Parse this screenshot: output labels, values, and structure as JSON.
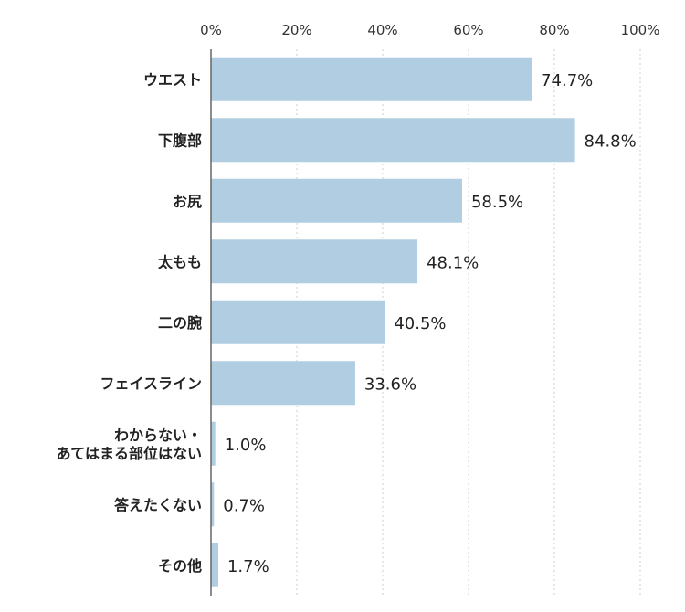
{
  "chart_data": {
    "type": "bar",
    "orientation": "horizontal",
    "categories": [
      [
        "ウエスト"
      ],
      [
        "下腹部"
      ],
      [
        "お尻"
      ],
      [
        "太もも"
      ],
      [
        "二の腕"
      ],
      [
        "フェイスライン"
      ],
      [
        "わからない・",
        "あてはまる部位はない"
      ],
      [
        "答えたくない"
      ],
      [
        "その他"
      ]
    ],
    "values": [
      74.7,
      84.8,
      58.5,
      48.1,
      40.5,
      33.6,
      1.0,
      0.7,
      1.7
    ],
    "value_labels": [
      "74.7%",
      "84.8%",
      "58.5%",
      "48.1%",
      "40.5%",
      "33.6%",
      "1.0%",
      "0.7%",
      "1.7%"
    ],
    "x_ticks": [
      "0%",
      "20%",
      "40%",
      "60%",
      "80%",
      "100%"
    ],
    "xlim": [
      0,
      100
    ],
    "grid": true,
    "bar_color": "#b0cde2",
    "axis_color": "#666666",
    "grid_color": "#cccccc"
  }
}
